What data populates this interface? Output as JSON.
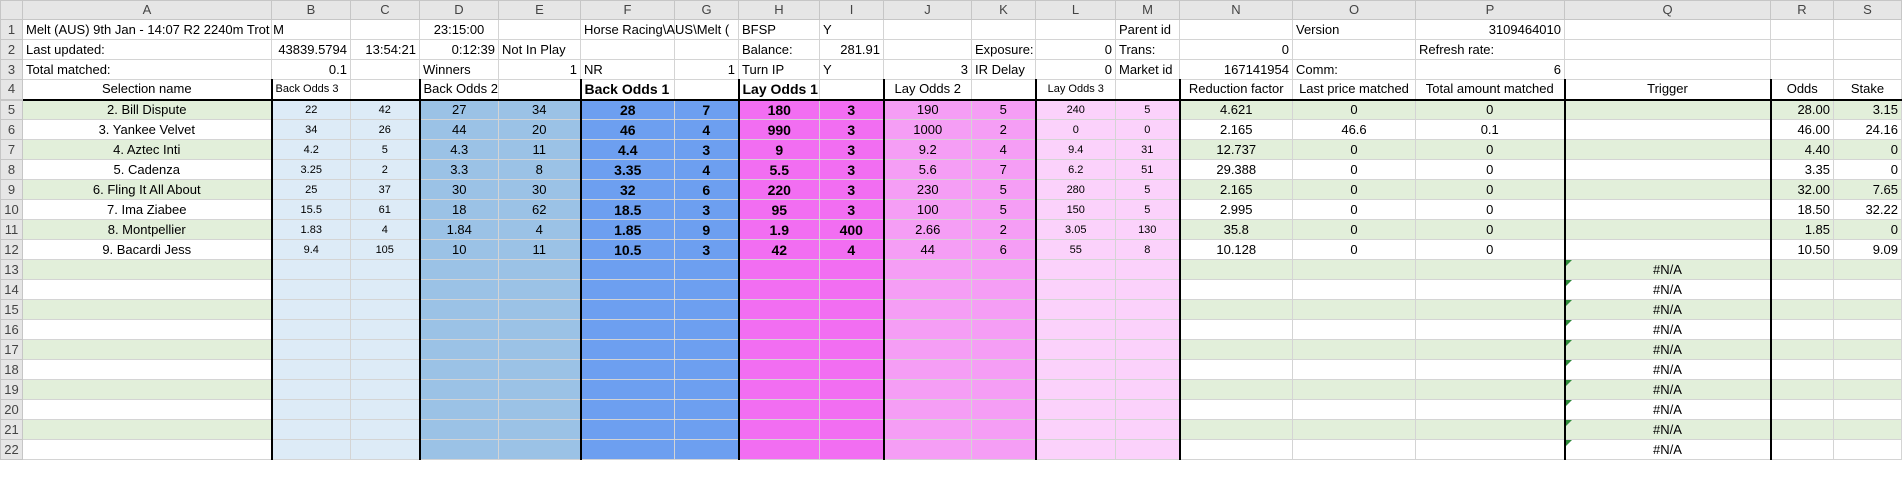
{
  "columns": [
    "A",
    "B",
    "C",
    "D",
    "E",
    "F",
    "G",
    "H",
    "I",
    "J",
    "K",
    "L",
    "M",
    "N",
    "O",
    "P",
    "Q",
    "R",
    "S"
  ],
  "row_numbers": [
    "1",
    "2",
    "3",
    "4",
    "5",
    "6",
    "7",
    "8",
    "9",
    "10",
    "11",
    "12",
    "13",
    "14",
    "15",
    "16",
    "17",
    "18",
    "19",
    "20",
    "21",
    "22"
  ],
  "info": {
    "r1": {
      "A": "Melt (AUS) 9th Jan - 14:07 R2 2240m Trot M",
      "D": "23:15:00",
      "F": "Horse Racing\\AUS\\Melt (",
      "H": "BFSP",
      "I": "Y",
      "M": "Parent id",
      "O": "Version",
      "P": "3109464010"
    },
    "r2": {
      "A": "Last updated:",
      "B": "43839.5794",
      "C": "13:54:21",
      "D": "0:12:39",
      "E": "Not In Play",
      "H": "Balance:",
      "I": "281.91",
      "K": "Exposure:",
      "L": "0",
      "M": "Trans:",
      "N": "0",
      "P": "Refresh rate:"
    },
    "r3": {
      "A": "Total matched:",
      "B": "0.1",
      "D": "Winners",
      "E": "1",
      "F": "NR",
      "G": "1",
      "H": "Turn IP",
      "I": "Y",
      "J": "3",
      "K": "IR Delay",
      "L": "0",
      "M": "Market id",
      "N": "167141954",
      "O": "Comm:",
      "P": "6"
    }
  },
  "headers": {
    "selection": "Selection name",
    "back3": "Back Odds 3",
    "back2": "Back Odds 2",
    "back1": "Back Odds 1",
    "lay1": "Lay Odds 1",
    "lay2": "Lay Odds 2",
    "lay3": "Lay Odds 3",
    "reduction": "Reduction factor",
    "last_price": "Last price matched",
    "total_amount": "Total amount matched",
    "trigger": "Trigger",
    "odds": "Odds",
    "stake": "Stake"
  },
  "selections": [
    {
      "name": "2. Bill Dispute",
      "b3": "22",
      "b3v": "42",
      "b2": "27",
      "b2v": "34",
      "b1": "28",
      "b1v": "7",
      "l1": "180",
      "l1v": "3",
      "l2": "190",
      "l2v": "5",
      "l3": "240",
      "l3v": "5",
      "rf": "4.621",
      "lpm": "0",
      "tam": "0",
      "trig": "",
      "odds": "28.00",
      "stake": "3.15"
    },
    {
      "name": "3. Yankee Velvet",
      "b3": "34",
      "b3v": "26",
      "b2": "44",
      "b2v": "20",
      "b1": "46",
      "b1v": "4",
      "l1": "990",
      "l1v": "3",
      "l2": "1000",
      "l2v": "2",
      "l3": "0",
      "l3v": "0",
      "rf": "2.165",
      "lpm": "46.6",
      "tam": "0.1",
      "trig": "",
      "odds": "46.00",
      "stake": "24.16"
    },
    {
      "name": "4. Aztec Inti",
      "b3": "4.2",
      "b3v": "5",
      "b2": "4.3",
      "b2v": "11",
      "b1": "4.4",
      "b1v": "3",
      "l1": "9",
      "l1v": "3",
      "l2": "9.2",
      "l2v": "4",
      "l3": "9.4",
      "l3v": "31",
      "rf": "12.737",
      "lpm": "0",
      "tam": "0",
      "trig": "",
      "odds": "4.40",
      "stake": "0"
    },
    {
      "name": "5. Cadenza",
      "b3": "3.25",
      "b3v": "2",
      "b2": "3.3",
      "b2v": "8",
      "b1": "3.35",
      "b1v": "4",
      "l1": "5.5",
      "l1v": "3",
      "l2": "5.6",
      "l2v": "7",
      "l3": "6.2",
      "l3v": "51",
      "rf": "29.388",
      "lpm": "0",
      "tam": "0",
      "trig": "",
      "odds": "3.35",
      "stake": "0"
    },
    {
      "name": "6. Fling It All About",
      "b3": "25",
      "b3v": "37",
      "b2": "30",
      "b2v": "30",
      "b1": "32",
      "b1v": "6",
      "l1": "220",
      "l1v": "3",
      "l2": "230",
      "l2v": "5",
      "l3": "280",
      "l3v": "5",
      "rf": "2.165",
      "lpm": "0",
      "tam": "0",
      "trig": "",
      "odds": "32.00",
      "stake": "7.65"
    },
    {
      "name": "7. Ima Ziabee",
      "b3": "15.5",
      "b3v": "61",
      "b2": "18",
      "b2v": "62",
      "b1": "18.5",
      "b1v": "3",
      "l1": "95",
      "l1v": "3",
      "l2": "100",
      "l2v": "5",
      "l3": "150",
      "l3v": "5",
      "rf": "2.995",
      "lpm": "0",
      "tam": "0",
      "trig": "",
      "odds": "18.50",
      "stake": "32.22"
    },
    {
      "name": "8. Montpellier",
      "b3": "1.83",
      "b3v": "4",
      "b2": "1.84",
      "b2v": "4",
      "b1": "1.85",
      "b1v": "9",
      "l1": "1.9",
      "l1v": "400",
      "l2": "2.66",
      "l2v": "2",
      "l3": "3.05",
      "l3v": "130",
      "rf": "35.8",
      "lpm": "0",
      "tam": "0",
      "trig": "",
      "odds": "1.85",
      "stake": "0"
    },
    {
      "name": "9. Bacardi Jess",
      "b3": "9.4",
      "b3v": "105",
      "b2": "10",
      "b2v": "11",
      "b1": "10.5",
      "b1v": "3",
      "l1": "42",
      "l1v": "4",
      "l2": "44",
      "l2v": "6",
      "l3": "55",
      "l3v": "8",
      "rf": "10.128",
      "lpm": "0",
      "tam": "0",
      "trig": "",
      "odds": "10.50",
      "stake": "9.09"
    },
    {
      "name": "",
      "b3": "",
      "b3v": "",
      "b2": "",
      "b2v": "",
      "b1": "",
      "b1v": "",
      "l1": "",
      "l1v": "",
      "l2": "",
      "l2v": "",
      "l3": "",
      "l3v": "",
      "rf": "",
      "lpm": "",
      "tam": "",
      "trig": "#N/A",
      "odds": "",
      "stake": ""
    },
    {
      "name": "",
      "b3": "",
      "b3v": "",
      "b2": "",
      "b2v": "",
      "b1": "",
      "b1v": "",
      "l1": "",
      "l1v": "",
      "l2": "",
      "l2v": "",
      "l3": "",
      "l3v": "",
      "rf": "",
      "lpm": "",
      "tam": "",
      "trig": "#N/A",
      "odds": "",
      "stake": ""
    },
    {
      "name": "",
      "b3": "",
      "b3v": "",
      "b2": "",
      "b2v": "",
      "b1": "",
      "b1v": "",
      "l1": "",
      "l1v": "",
      "l2": "",
      "l2v": "",
      "l3": "",
      "l3v": "",
      "rf": "",
      "lpm": "",
      "tam": "",
      "trig": "#N/A",
      "odds": "",
      "stake": ""
    },
    {
      "name": "",
      "b3": "",
      "b3v": "",
      "b2": "",
      "b2v": "",
      "b1": "",
      "b1v": "",
      "l1": "",
      "l1v": "",
      "l2": "",
      "l2v": "",
      "l3": "",
      "l3v": "",
      "rf": "",
      "lpm": "",
      "tam": "",
      "trig": "#N/A",
      "odds": "",
      "stake": ""
    },
    {
      "name": "",
      "b3": "",
      "b3v": "",
      "b2": "",
      "b2v": "",
      "b1": "",
      "b1v": "",
      "l1": "",
      "l1v": "",
      "l2": "",
      "l2v": "",
      "l3": "",
      "l3v": "",
      "rf": "",
      "lpm": "",
      "tam": "",
      "trig": "#N/A",
      "odds": "",
      "stake": ""
    },
    {
      "name": "",
      "b3": "",
      "b3v": "",
      "b2": "",
      "b2v": "",
      "b1": "",
      "b1v": "",
      "l1": "",
      "l1v": "",
      "l2": "",
      "l2v": "",
      "l3": "",
      "l3v": "",
      "rf": "",
      "lpm": "",
      "tam": "",
      "trig": "#N/A",
      "odds": "",
      "stake": ""
    },
    {
      "name": "",
      "b3": "",
      "b3v": "",
      "b2": "",
      "b2v": "",
      "b1": "",
      "b1v": "",
      "l1": "",
      "l1v": "",
      "l2": "",
      "l2v": "",
      "l3": "",
      "l3v": "",
      "rf": "",
      "lpm": "",
      "tam": "",
      "trig": "#N/A",
      "odds": "",
      "stake": ""
    },
    {
      "name": "",
      "b3": "",
      "b3v": "",
      "b2": "",
      "b2v": "",
      "b1": "",
      "b1v": "",
      "l1": "",
      "l1v": "",
      "l2": "",
      "l2v": "",
      "l3": "",
      "l3v": "",
      "rf": "",
      "lpm": "",
      "tam": "",
      "trig": "#N/A",
      "odds": "",
      "stake": ""
    },
    {
      "name": "",
      "b3": "",
      "b3v": "",
      "b2": "",
      "b2v": "",
      "b1": "",
      "b1v": "",
      "l1": "",
      "l1v": "",
      "l2": "",
      "l2v": "",
      "l3": "",
      "l3v": "",
      "rf": "",
      "lpm": "",
      "tam": "",
      "trig": "#N/A",
      "odds": "",
      "stake": ""
    },
    {
      "name": "",
      "b3": "",
      "b3v": "",
      "b2": "",
      "b2v": "",
      "b1": "",
      "b1v": "",
      "l1": "",
      "l1v": "",
      "l2": "",
      "l2v": "",
      "l3": "",
      "l3v": "",
      "rf": "",
      "lpm": "",
      "tam": "",
      "trig": "#N/A",
      "odds": "",
      "stake": ""
    }
  ]
}
